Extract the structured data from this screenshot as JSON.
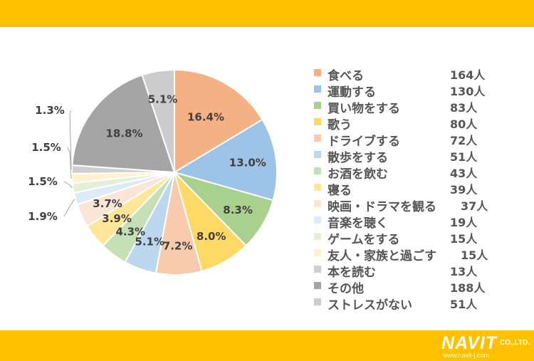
{
  "brand": {
    "name": "NAVIT",
    "suffix": "CO.,LTD.",
    "url": "www.navit-j.com",
    "band_color": "#ffc000"
  },
  "chart_data": {
    "type": "pie",
    "start_angle_deg": 0,
    "direction": "clockwise",
    "slices": [
      {
        "name": "食べる",
        "count": "164人",
        "percent": 16.4,
        "label": "16.4%",
        "color": "#f4b183"
      },
      {
        "name": "運動する",
        "count": "130人",
        "percent": 13.0,
        "label": "13.0%",
        "color": "#9dc3e6"
      },
      {
        "name": "買い物をする",
        "count": "83人",
        "percent": 8.3,
        "label": "8.3%",
        "color": "#a9d18e"
      },
      {
        "name": "歌う",
        "count": "80人",
        "percent": 8.0,
        "label": "8.0%",
        "color": "#ffd966"
      },
      {
        "name": "ドライブする",
        "count": "72人",
        "percent": 7.2,
        "label": "7.2%",
        "color": "#f8cbad"
      },
      {
        "name": "散歩をする",
        "count": "51人",
        "percent": 5.1,
        "label": "5.1%",
        "color": "#bdd7ee"
      },
      {
        "name": "お酒を飲む",
        "count": "43人",
        "percent": 4.3,
        "label": "4.3%",
        "color": "#c5e0b4"
      },
      {
        "name": "寝る",
        "count": "39人",
        "percent": 3.9,
        "label": "3.9%",
        "color": "#ffe699"
      },
      {
        "name": "映画・ドラマを観る",
        "count": "37人",
        "percent": 3.7,
        "label": "3.7%",
        "color": "#fbe5d6"
      },
      {
        "name": "音楽を聴く",
        "count": "19人",
        "percent": 1.9,
        "label": "1.9%",
        "color": "#deebf7"
      },
      {
        "name": "ゲームをする",
        "count": "15人",
        "percent": 1.5,
        "label": "1.5%",
        "color": "#e2f0d9"
      },
      {
        "name": "友人・家族と過ごす",
        "count": "15人",
        "percent": 1.5,
        "label": "1.5%",
        "color": "#fff2cc"
      },
      {
        "name": "本を読む",
        "count": "13人",
        "percent": 1.3,
        "label": "1.3%",
        "color": "#d0cece"
      },
      {
        "name": "その他",
        "count": "188人",
        "percent": 18.8,
        "label": "18.8%",
        "color": "#a5a5a5"
      },
      {
        "name": "ストレスがない",
        "count": "51人",
        "percent": 5.1,
        "label": "5.1%",
        "color": "#cccccc"
      }
    ],
    "legend_position": "right",
    "label_color": "#404040"
  }
}
